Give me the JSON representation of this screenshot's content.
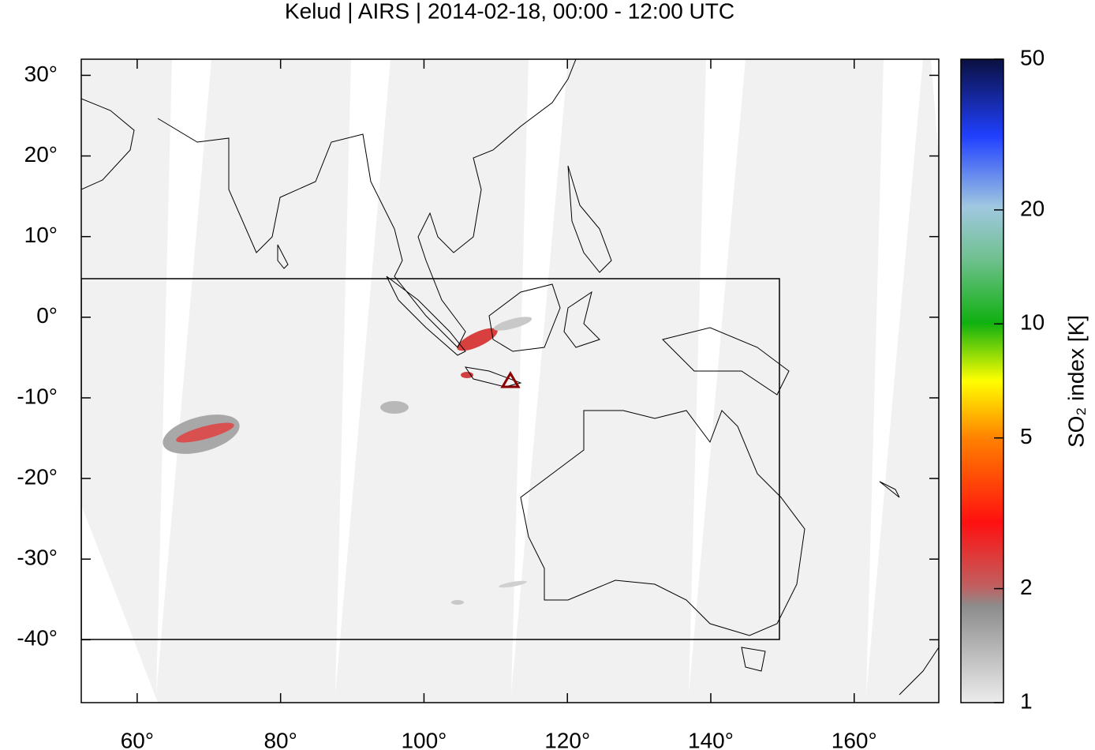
{
  "chart_data": {
    "type": "map",
    "title": "Kelud | AIRS | 2014-02-18, 00:00 - 12:00 UTC",
    "xlim": [
      52.2,
      171.8
    ],
    "xticks": [
      {
        "value": 60,
        "label": "60°"
      },
      {
        "value": 80,
        "label": "80°"
      },
      {
        "value": 100,
        "label": "100°"
      },
      {
        "value": 120,
        "label": "120°"
      },
      {
        "value": 140,
        "label": "140°"
      },
      {
        "value": 160,
        "label": "160°"
      }
    ],
    "ylim": [
      -47.8,
      32
    ],
    "yticks": [
      {
        "value": 30,
        "label": "30°"
      },
      {
        "value": 20,
        "label": "20°"
      },
      {
        "value": 10,
        "label": "10°"
      },
      {
        "value": 0,
        "label": "0°"
      },
      {
        "value": -10,
        "label": "-10°"
      },
      {
        "value": -20,
        "label": "-20°"
      },
      {
        "value": -30,
        "label": "-30°"
      },
      {
        "value": -40,
        "label": "-40°"
      }
    ],
    "colorbar": {
      "label": "SO₂ index [K]",
      "log": true,
      "lim": [
        1,
        50
      ],
      "ticks": [
        1,
        2,
        5,
        10,
        20,
        50
      ]
    }
  }
}
